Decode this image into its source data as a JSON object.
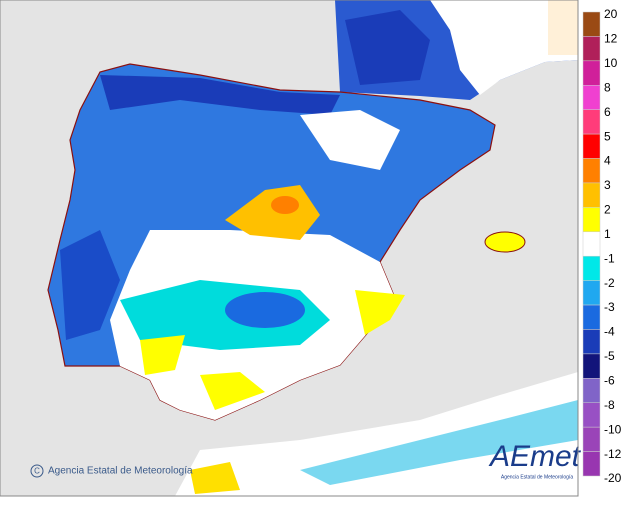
{
  "legend": {
    "labels": [
      "20",
      "12",
      "10",
      "8",
      "6",
      "5",
      "4",
      "3",
      "2",
      "1",
      "-1",
      "-2",
      "-3",
      "-4",
      "-5",
      "-6",
      "-8",
      "-10",
      "-12",
      "-20"
    ],
    "colors": [
      "#9a4a14",
      "#b0205a",
      "#d0209a",
      "#f040d0",
      "#ff3c7a",
      "#ff0000",
      "#ff8000",
      "#ffc000",
      "#ffff00",
      "#ffffff",
      "#00e8e8",
      "#20a8f0",
      "#1a6ae0",
      "#1a3cb8",
      "#12147a",
      "#8064c8",
      "#9850c4",
      "#9a44b8",
      "#9836b0"
    ]
  },
  "credit": "Agencia Estatal de Meteorología",
  "logo": {
    "name": "AEmet",
    "subtitle": "Agencia Estatal de Meteorología"
  }
}
